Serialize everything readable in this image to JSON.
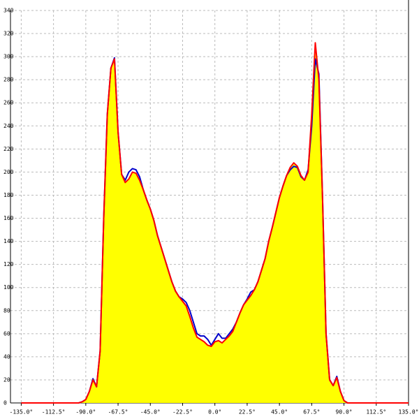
{
  "chart_data": {
    "type": "area",
    "x": [
      -135,
      -95,
      -92.5,
      -90,
      -87.5,
      -85,
      -82.5,
      -80,
      -77.5,
      -75,
      -72.5,
      -70,
      -67.5,
      -65,
      -62.5,
      -60,
      -57.5,
      -55,
      -52.5,
      -50,
      -47.5,
      -45,
      -42.5,
      -40,
      -37.5,
      -35,
      -32.5,
      -30,
      -27.5,
      -25,
      -22.5,
      -20,
      -17.5,
      -15,
      -12.5,
      -10,
      -7.5,
      -5,
      -2.5,
      0,
      2.5,
      5,
      7.5,
      10,
      12.5,
      15,
      17.5,
      20,
      22.5,
      25,
      27.5,
      30,
      32.5,
      35,
      37.5,
      40,
      42.5,
      45,
      47.5,
      50,
      52.5,
      55,
      57.5,
      60,
      62.5,
      65,
      67.5,
      70,
      72.5,
      75,
      77.5,
      80,
      82.5,
      85,
      87.5,
      90,
      92.5,
      95,
      135
    ],
    "series": [
      {
        "color": "#0000cc",
        "values": [
          0,
          0,
          1,
          3,
          10,
          21,
          14,
          45,
          160,
          250,
          290,
          299,
          235,
          198,
          193,
          200,
          203,
          202,
          196,
          185,
          176,
          168,
          158,
          145,
          135,
          125,
          115,
          105,
          97,
          92,
          90,
          87,
          80,
          70,
          60,
          58,
          58,
          55,
          50,
          55,
          60,
          56,
          56,
          60,
          64,
          70,
          78,
          85,
          90,
          96,
          98,
          105,
          115,
          125,
          140,
          152,
          165,
          178,
          188,
          197,
          202,
          205,
          204,
          196,
          193,
          202,
          240,
          298,
          285,
          180,
          60,
          20,
          15,
          23,
          10,
          2,
          0,
          0,
          0
        ]
      },
      {
        "color": "#ff0000",
        "fill": "#ffff00",
        "values": [
          0,
          0,
          1,
          3,
          10,
          20,
          14,
          45,
          160,
          250,
          290,
          298,
          235,
          198,
          191,
          194,
          200,
          199,
          193,
          185,
          176,
          168,
          158,
          145,
          135,
          125,
          115,
          105,
          97,
          92,
          88,
          84,
          75,
          65,
          57,
          55,
          53,
          50,
          49,
          53,
          54,
          52,
          55,
          58,
          62,
          70,
          78,
          85,
          89,
          93,
          98,
          105,
          115,
          125,
          140,
          152,
          165,
          178,
          188,
          197,
          204,
          208,
          205,
          197,
          193,
          200,
          250,
          312,
          280,
          180,
          60,
          20,
          15,
          22,
          10,
          2,
          0,
          0,
          0
        ]
      }
    ],
    "xlim": [
      -142.5,
      135
    ],
    "xticks": [
      {
        "value": -135,
        "label": "-135.0°"
      },
      {
        "value": -112.5,
        "label": "-112.5°"
      },
      {
        "value": -90,
        "label": "-90.0°"
      },
      {
        "value": -67.5,
        "label": "-67.5°"
      },
      {
        "value": -45,
        "label": "-45.0°"
      },
      {
        "value": -22.5,
        "label": "-22.5°"
      },
      {
        "value": 0,
        "label": "0.0°"
      },
      {
        "value": 22.5,
        "label": "22.5°"
      },
      {
        "value": 45,
        "label": "45.0°"
      },
      {
        "value": 67.5,
        "label": "67.5°"
      },
      {
        "value": 90,
        "label": "90.0°"
      },
      {
        "value": 112.5,
        "label": "112.5°"
      },
      {
        "value": 135,
        "label": "135.0°"
      }
    ],
    "ylim": [
      0,
      340
    ],
    "yticks": [
      0,
      20,
      40,
      60,
      80,
      100,
      120,
      140,
      160,
      180,
      200,
      220,
      240,
      260,
      280,
      300,
      320,
      340
    ],
    "grid": true
  }
}
